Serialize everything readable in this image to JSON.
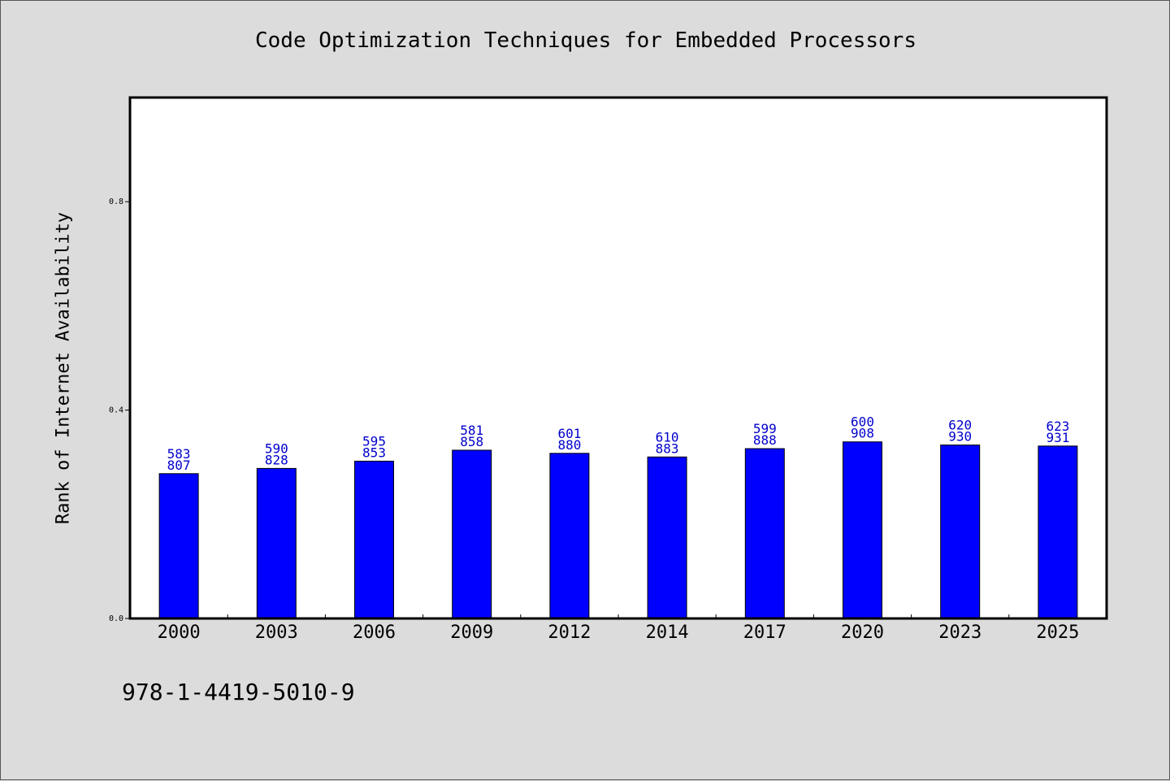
{
  "chart_data": {
    "type": "bar",
    "title": "Code Optimization Techniques for Embedded Processors",
    "ylabel": "Rank of Internet Availability",
    "xlabel": "",
    "categories": [
      "2000",
      "2003",
      "2006",
      "2009",
      "2012",
      "2014",
      "2017",
      "2020",
      "2023",
      "2025"
    ],
    "values": [
      0.278,
      0.288,
      0.302,
      0.323,
      0.317,
      0.31,
      0.326,
      0.339,
      0.333,
      0.331
    ],
    "data_labels": [
      [
        "583",
        "807"
      ],
      [
        "590",
        "828"
      ],
      [
        "595",
        "853"
      ],
      [
        "581",
        "858"
      ],
      [
        "601",
        "880"
      ],
      [
        "610",
        "883"
      ],
      [
        "599",
        "888"
      ],
      [
        "600",
        "908"
      ],
      [
        "620",
        "930"
      ],
      [
        "623",
        "931"
      ]
    ],
    "ylim": [
      0,
      1.0
    ],
    "yticks": [
      "0.0",
      "0.4",
      "0.8"
    ],
    "ytick_values": [
      0.0,
      0.4,
      0.8
    ],
    "grid": false,
    "bar_color": "#0000ff",
    "label_color": "#0000cc"
  },
  "footer": {
    "isbn": "978-1-4419-5010-9"
  }
}
